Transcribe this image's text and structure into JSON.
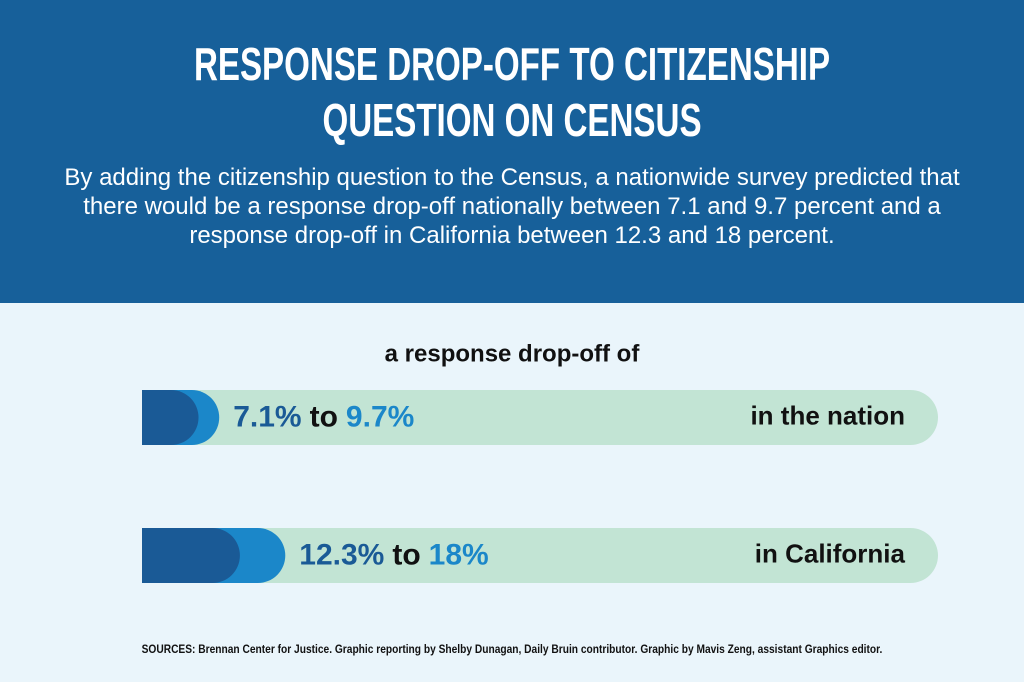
{
  "chart_data": {
    "type": "range-bar",
    "title": "RESPONSE DROP-OFF TO CITIZENSHIP QUESTION ON CENSUS",
    "subtitle": "By adding the citizenship question to the Census, a nationwide survey predicted that there would be a response drop-off nationally between 7.1 and 9.7 percent and a response drop-off in California between 12.3 and 18 percent.",
    "axis_label": "a response drop-off of",
    "connector": "to",
    "xlim": [
      0,
      100
    ],
    "low_color": "#1a5a96",
    "high_color": "#1b87c9",
    "track_color": "#c2e4d4",
    "ranges": [
      {
        "label": "in the nation",
        "low": 7.1,
        "low_label": "7.1%",
        "high": 9.7,
        "high_label": "9.7%"
      },
      {
        "label": "in California",
        "low": 12.3,
        "low_label": "12.3%",
        "high": 18,
        "high_label": "18%"
      }
    ],
    "source": "SOURCES: Brennan Center for Justice. Graphic reporting by Shelby Dunagan, Daily Bruin contributor. Graphic by Mavis Zeng, assistant Graphics editor."
  }
}
